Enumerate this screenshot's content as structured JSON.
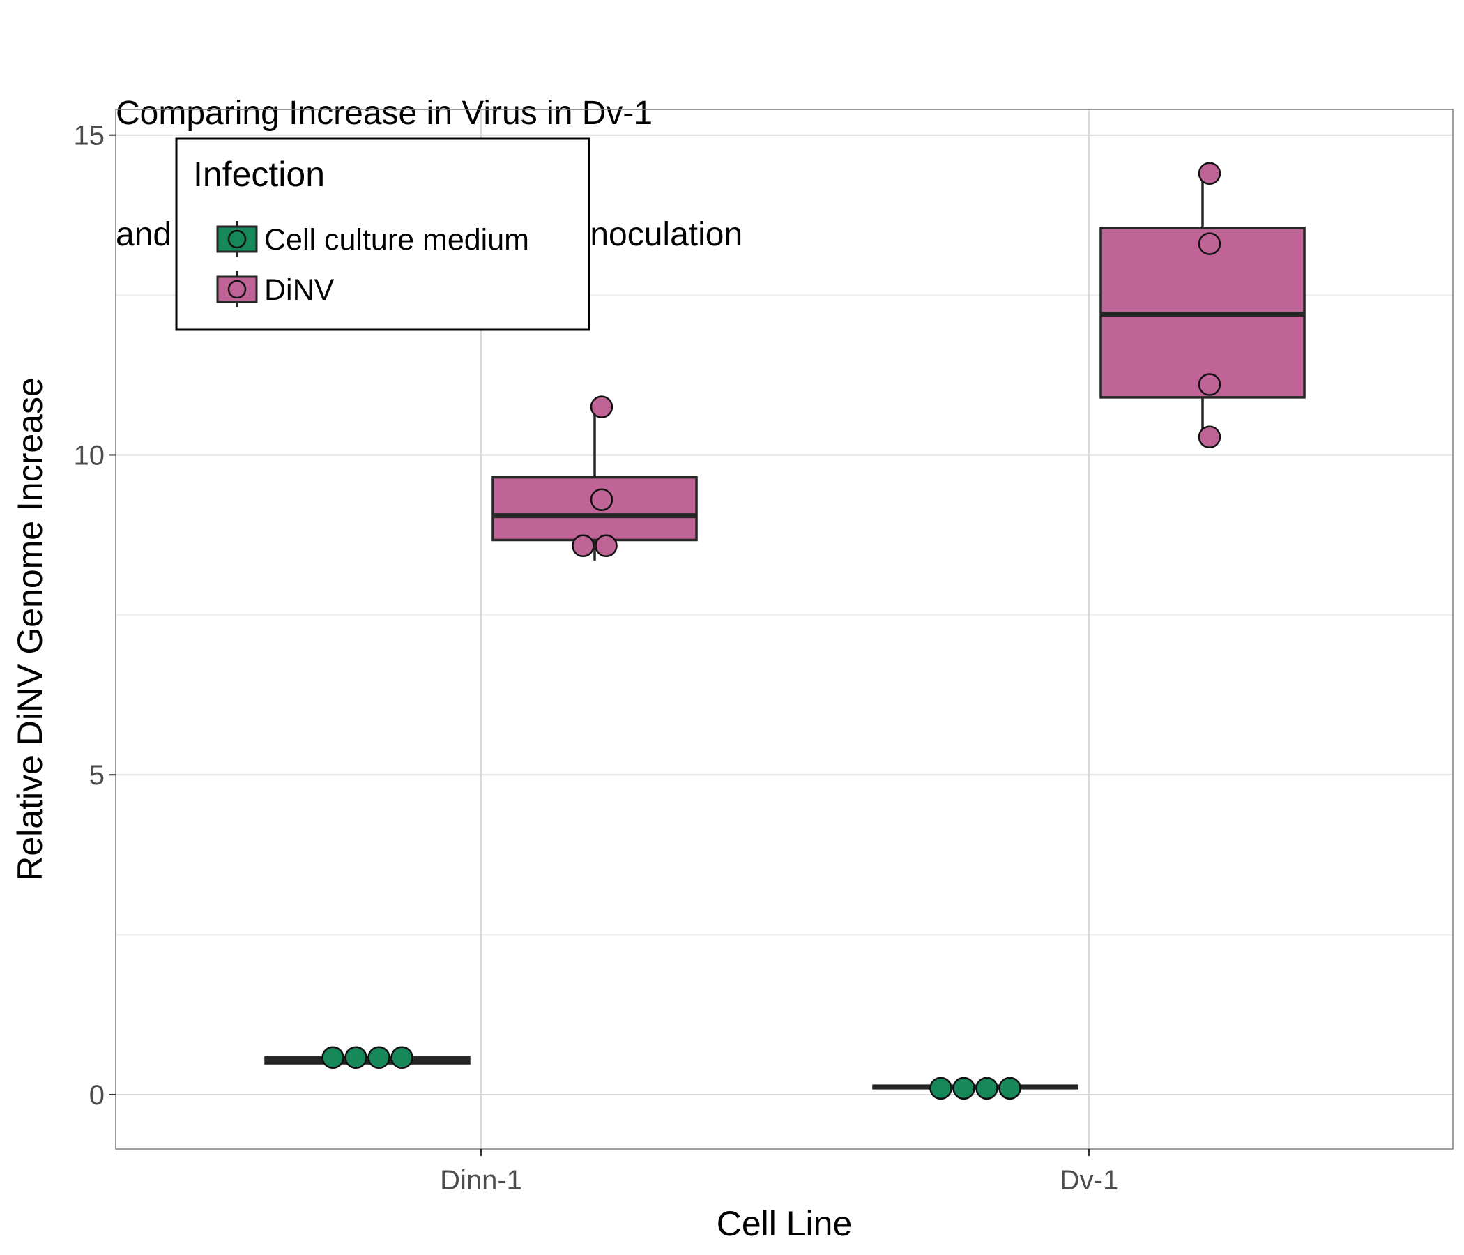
{
  "chart_data": {
    "type": "box",
    "title_lines": [
      "Comparing Increase in Virus in Dv-1",
      "and Dinn-1 Cells 5 Days Post Innoculation"
    ],
    "xlabel": "Cell Line",
    "ylabel": "Relative DiNV Genome Increase",
    "categories": [
      "Dinn-1",
      "Dv-1"
    ],
    "ylim": [
      -0.85,
      15.4
    ],
    "y_ticks": [
      0,
      5,
      10,
      15
    ],
    "y_minor_ticks": [
      2.5,
      7.5,
      12.5
    ],
    "grid": true,
    "legend": {
      "title": "Infection",
      "position": "top-left",
      "entries": [
        "Cell culture medium",
        "DiNV"
      ]
    },
    "series": [
      {
        "name": "Cell culture medium",
        "color": "#17885a",
        "boxes": [
          {
            "category": "Dinn-1",
            "min": 0.49,
            "q1": 0.49,
            "median": 0.53,
            "q3": 0.58,
            "max": 0.58,
            "points": [
              0.58,
              0.58,
              0.58,
              0.58
            ]
          },
          {
            "category": "Dv-1",
            "min": 0.1,
            "q1": 0.1,
            "median": 0.12,
            "q3": 0.14,
            "max": 0.14,
            "points": [
              0.1,
              0.1,
              0.1,
              0.1
            ]
          }
        ]
      },
      {
        "name": "DiNV",
        "color": "#c06396",
        "boxes": [
          {
            "category": "Dinn-1",
            "min": 8.35,
            "q1": 8.67,
            "median": 9.05,
            "q3": 9.65,
            "max": 10.75,
            "points": [
              10.75,
              9.3,
              8.58,
              8.58
            ]
          },
          {
            "category": "Dv-1",
            "min": 10.28,
            "q1": 10.9,
            "median": 12.2,
            "q3": 13.55,
            "max": 14.4,
            "points": [
              14.4,
              13.3,
              11.1,
              10.28
            ]
          }
        ]
      }
    ]
  }
}
